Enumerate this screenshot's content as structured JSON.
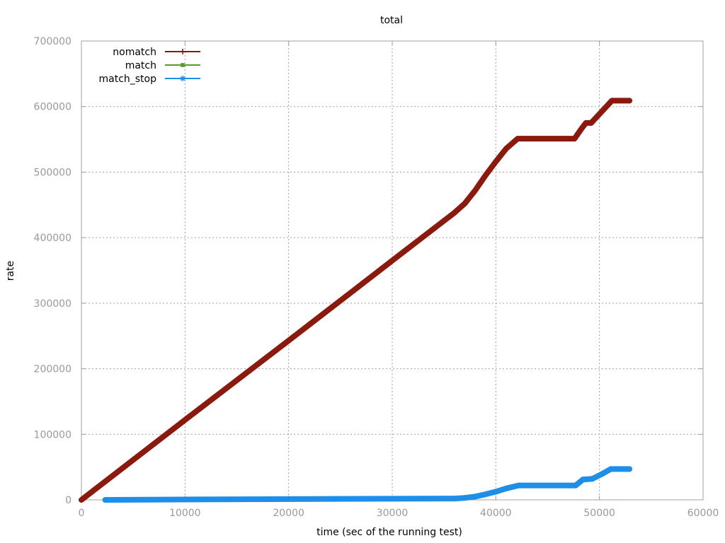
{
  "chart_data": {
    "type": "line",
    "title": "total",
    "xlabel": "time (sec of the running test)",
    "ylabel": "rate",
    "xlim": [
      0,
      60000
    ],
    "ylim": [
      0,
      700000
    ],
    "xticks": [
      0,
      10000,
      20000,
      30000,
      40000,
      50000,
      60000
    ],
    "yticks": [
      0,
      100000,
      200000,
      300000,
      400000,
      500000,
      600000,
      700000
    ],
    "grid": true,
    "legend_position": "top-left",
    "series": [
      {
        "name": "nomatch",
        "color": "#8b1a0e",
        "marker": "plus",
        "x": [
          0,
          10000,
          20000,
          30000,
          36000,
          37000,
          38000,
          39000,
          40000,
          41000,
          42100,
          47600,
          48300,
          48700,
          49200,
          51200,
          52900
        ],
        "y": [
          0,
          122000,
          243000,
          365000,
          438000,
          452000,
          472000,
          495000,
          516000,
          536000,
          551000,
          551000,
          567000,
          575000,
          575000,
          609000,
          609000
        ]
      },
      {
        "name": "match",
        "color": "#5a9a2a",
        "marker": "filled-square",
        "x": [],
        "y": []
      },
      {
        "name": "match_stop",
        "color": "#1e8ee8",
        "marker": "star",
        "x": [
          2300,
          11000,
          24500,
          36000,
          37000,
          38000,
          39000,
          40000,
          41000,
          42200,
          47700,
          48400,
          49300,
          50300,
          51100,
          52900
        ],
        "y": [
          0,
          600,
          1500,
          2000,
          3000,
          5000,
          8500,
          12500,
          17500,
          22000,
          22000,
          31000,
          32000,
          40000,
          47000,
          47000
        ]
      }
    ]
  }
}
